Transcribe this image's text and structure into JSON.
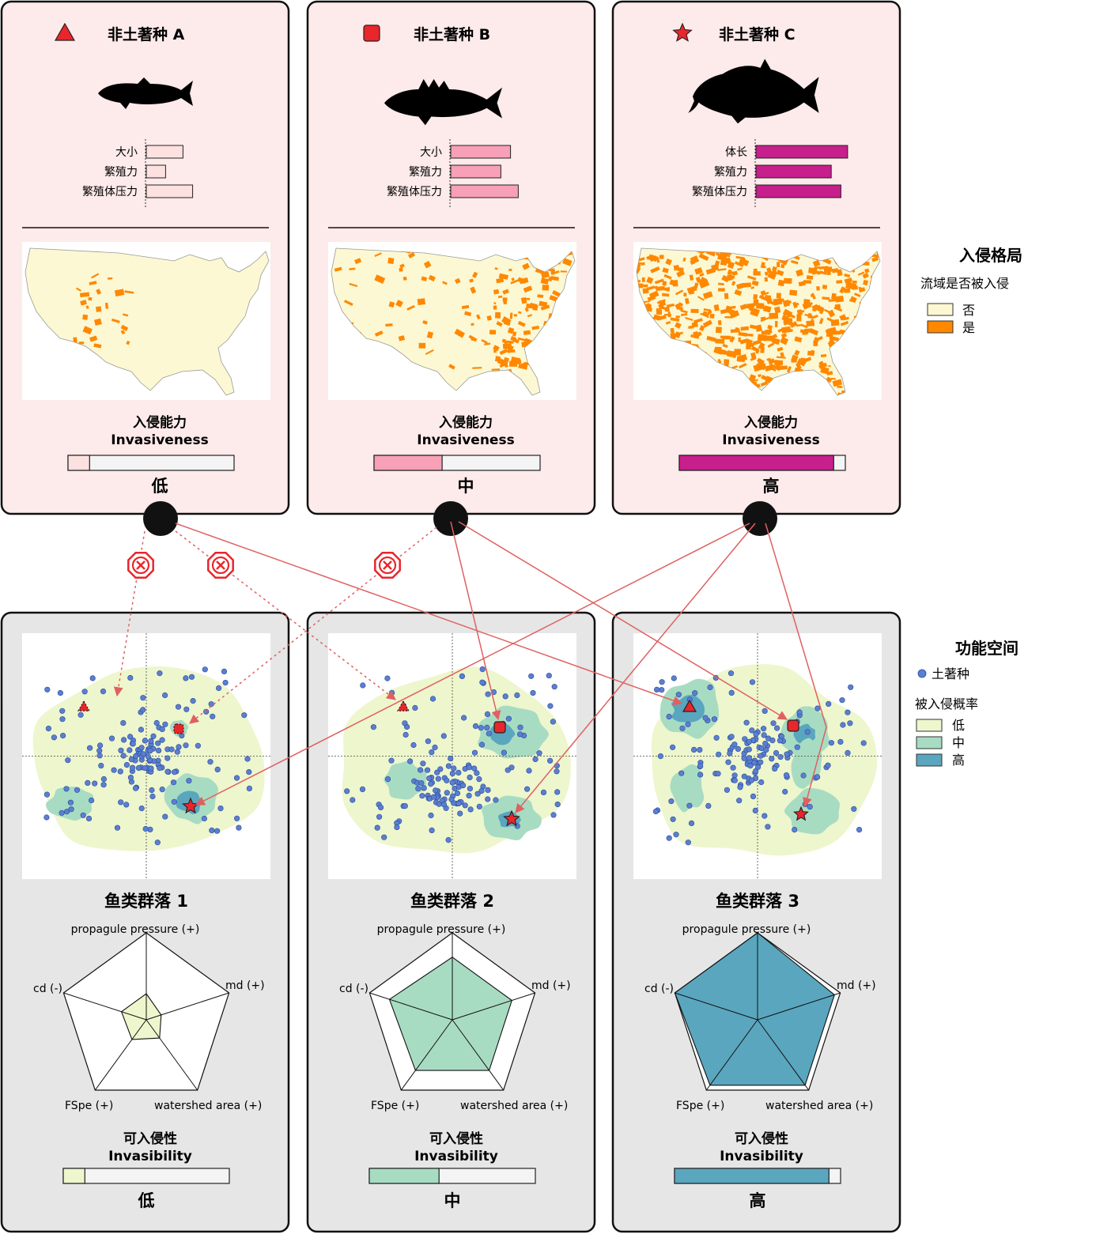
{
  "colors": {
    "panel_top_bg": "#fdeaea",
    "panel_bottom_bg": "#e6e6e6",
    "arrow": "#e06060",
    "marker_red": "#e8262b",
    "native_dot": "#5b7fd0",
    "map_no": "#fcf8d3",
    "map_yes": "#ff8800",
    "prob_low": "#eef6cd",
    "prob_mid": "#a8dcc2",
    "prob_high": "#5aa6be",
    "bar_low": "#fde0e0",
    "bar_mid": "#f7a0b7",
    "bar_high": "#c71f8c"
  },
  "species": [
    {
      "title": "非土著种 A",
      "marker_icon": "triangle-icon",
      "fish_icon": "pike-fish-icon",
      "trait_labels": [
        "大小",
        "繁殖力",
        "繁殖体压力"
      ],
      "trait_values": [
        0.38,
        0.2,
        0.48
      ],
      "map_icon": "usa-map-icon",
      "invasiveness_label": "入侵能力",
      "invasiveness_label_en": "Invasiveness",
      "invasiveness_value": 0.13,
      "invasiveness_level": "低"
    },
    {
      "title": "非土著种 B",
      "marker_icon": "square-icon",
      "fish_icon": "perch-fish-icon",
      "trait_labels": [
        "大小",
        "繁殖力",
        "繁殖体压力"
      ],
      "trait_values": [
        0.62,
        0.52,
        0.7
      ],
      "map_icon": "usa-map-icon",
      "invasiveness_label": "入侵能力",
      "invasiveness_label_en": "Invasiveness",
      "invasiveness_value": 0.41,
      "invasiveness_level": "中"
    },
    {
      "title": "非土著种 C",
      "marker_icon": "star-icon",
      "fish_icon": "carp-fish-icon",
      "trait_labels": [
        "体长",
        "繁殖力",
        "繁殖体压力"
      ],
      "trait_values": [
        0.95,
        0.78,
        0.88
      ],
      "map_icon": "usa-map-icon",
      "invasiveness_label": "入侵能力",
      "invasiveness_label_en": "Invasiveness",
      "invasiveness_value": 0.93,
      "invasiveness_level": "高"
    }
  ],
  "legend_map": {
    "title": "入侵格局",
    "subtitle": "流域是否被入侵",
    "items": [
      {
        "label": "否",
        "color": "#fcf8d3"
      },
      {
        "label": "是",
        "color": "#ff8800"
      }
    ]
  },
  "legend_space": {
    "title": "功能空间",
    "native_label": "土著种",
    "prob_title": "被入侵概率",
    "items": [
      {
        "label": "低",
        "color": "#eef6cd"
      },
      {
        "label": "中",
        "color": "#a8dcc2"
      },
      {
        "label": "高",
        "color": "#5aa6be"
      }
    ]
  },
  "communities": [
    {
      "title": "鱼类群落 1",
      "radar_axes": [
        "propagule pressure (+)",
        "md (+)",
        "watershed area (+)",
        "FSpe (+)",
        "cd (-)"
      ],
      "radar_values": [
        0.3,
        0.18,
        0.26,
        0.28,
        0.3
      ],
      "invasibility_label": "可入侵性",
      "invasibility_label_en": "Invasibility",
      "invasibility_value": 0.13,
      "invasibility_level": "低"
    },
    {
      "title": "鱼类群落 2",
      "radar_axes": [
        "propagule pressure (+)",
        "md (+)",
        "watershed area (+)",
        "FSpe (+)",
        "cd (-)"
      ],
      "radar_values": [
        0.72,
        0.72,
        0.72,
        0.72,
        0.76
      ],
      "invasibility_label": "可入侵性",
      "invasibility_label_en": "Invasibility",
      "invasibility_value": 0.42,
      "invasibility_level": "中"
    },
    {
      "title": "鱼类群落 3",
      "radar_axes": [
        "propagule pressure (+)",
        "md (+)",
        "watershed area (+)",
        "FSpe (+)",
        "cd (-)"
      ],
      "radar_values": [
        1.0,
        0.93,
        0.93,
        0.93,
        1.0
      ],
      "invasibility_label": "可入侵性",
      "invasibility_label_en": "Invasibility",
      "invasibility_value": 0.93,
      "invasibility_level": "高"
    }
  ]
}
